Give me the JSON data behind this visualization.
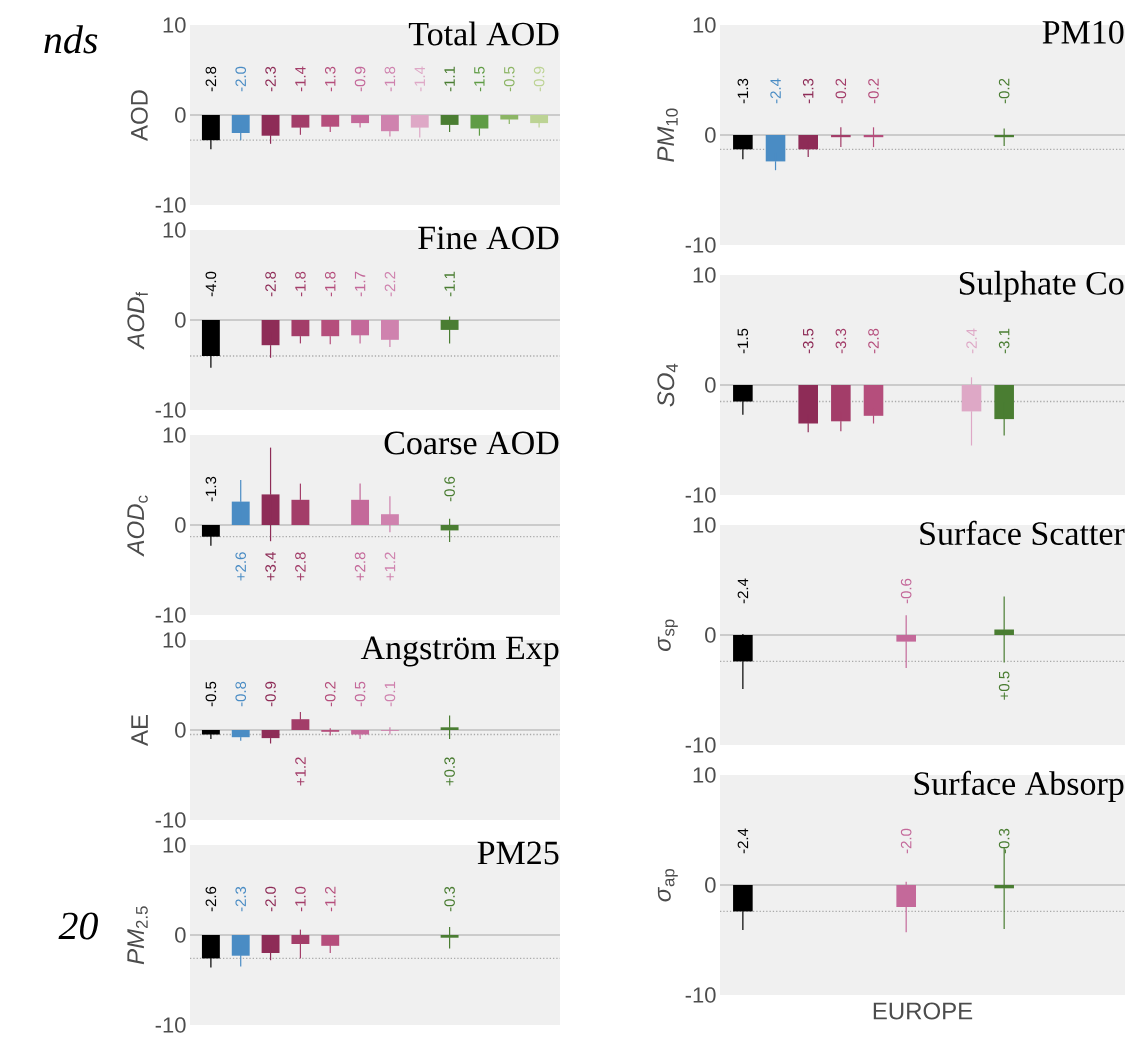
{
  "chart_data": [
    {
      "type": "bar",
      "title": "Total AOD",
      "ylabel": "AOD",
      "categories": [
        null,
        null,
        null,
        null,
        null,
        null,
        null,
        null,
        null,
        null,
        null,
        null
      ],
      "colors": [
        "#000000",
        "#4a8cc4",
        "#8e2c57",
        "#a33d69",
        "#b54e7c",
        "#c4699a",
        "#cf82ae",
        "#dea8c6",
        "#4a7d32",
        "#5f9c45",
        "#8cb565",
        "#bcd394"
      ],
      "values": [
        -2.8,
        -2.0,
        -2.3,
        -1.4,
        -1.3,
        -0.9,
        -1.8,
        -1.4,
        -1.1,
        -1.5,
        -0.5,
        -0.9
      ],
      "errors": [
        1.0,
        0.8,
        0.9,
        0.8,
        0.6,
        0.5,
        0.6,
        1.1,
        0.8,
        0.8,
        0.5,
        0.5
      ],
      "value_labels": [
        "-2.8",
        "-2.0",
        "-2.3",
        "-1.4",
        "-1.3",
        "-0.9",
        "-1.8",
        "-1.4",
        "-1.1",
        "-1.5",
        "-0.5",
        "-0.9"
      ],
      "ylim": [
        -10,
        10
      ],
      "yticks": [
        -10,
        0,
        10
      ],
      "tick_labels": "y",
      "ref_lines": [
        {
          "axis": "y",
          "value": -2.8,
          "color": "#aaaaaa",
          "line_style": "dotted"
        }
      ],
      "annotations": [
        "nds"
      ]
    },
    {
      "type": "bar",
      "title": "Fine AOD",
      "ylabel": "*AOD*$_{f}$",
      "categories": [
        null,
        null,
        null,
        null,
        null,
        null,
        null,
        null,
        null,
        null,
        null,
        null
      ],
      "colors": [
        "#000000",
        "#4a8cc4",
        "#8e2c57",
        "#a33d69",
        "#b54e7c",
        "#c4699a",
        "#cf82ae",
        "#dea8c6",
        "#4a7d32",
        "#5f9c45",
        "#8cb565",
        "#bcd394"
      ],
      "values": [
        -4.0,
        null,
        -2.8,
        -1.8,
        -1.8,
        -1.7,
        -2.2,
        null,
        -1.1,
        null,
        null,
        null
      ],
      "errors": [
        1.3,
        null,
        1.4,
        0.8,
        0.9,
        0.9,
        0.8,
        null,
        1.5,
        null,
        null,
        null
      ],
      "value_labels": [
        "-4.0",
        null,
        "-2.8",
        "-1.8",
        "-1.8",
        "-1.7",
        "-2.2",
        null,
        "-1.1",
        null,
        null,
        null
      ],
      "ylim": [
        -10,
        10
      ],
      "yticks": [
        -10,
        0,
        10
      ],
      "tick_labels": "y",
      "ref_lines": [
        {
          "axis": "y",
          "value": -4.0,
          "color": "#aaaaaa",
          "line_style": "dotted"
        }
      ]
    },
    {
      "type": "bar",
      "title": "Coarse AOD",
      "ylabel": "*AOD*$_{c}$",
      "categories": [
        null,
        null,
        null,
        null,
        null,
        null,
        null,
        null,
        null,
        null,
        null,
        null
      ],
      "colors": [
        "#000000",
        "#4a8cc4",
        "#8e2c57",
        "#a33d69",
        "#b54e7c",
        "#c4699a",
        "#cf82ae",
        "#dea8c6",
        "#4a7d32",
        "#5f9c45",
        "#8cb565",
        "#bcd394"
      ],
      "values": [
        -1.3,
        2.6,
        3.4,
        2.8,
        null,
        2.8,
        1.2,
        null,
        -0.6,
        null,
        null,
        null
      ],
      "errors": [
        1.0,
        2.4,
        5.2,
        1.8,
        null,
        1.8,
        2.0,
        null,
        1.3,
        null,
        null,
        null
      ],
      "value_labels": [
        "-1.3",
        "+2.6",
        "+3.4",
        "+2.8",
        null,
        "+2.8",
        "+1.2",
        null,
        "-0.6",
        null,
        null,
        null
      ],
      "ylim": [
        -10,
        10
      ],
      "yticks": [
        -10,
        0,
        10
      ],
      "tick_labels": "y",
      "ref_lines": [
        {
          "axis": "y",
          "value": -1.3,
          "color": "#aaaaaa",
          "line_style": "dotted"
        }
      ]
    },
    {
      "type": "bar",
      "title": "Angström Exp",
      "ylabel": "AE",
      "categories": [
        null,
        null,
        null,
        null,
        null,
        null,
        null,
        null,
        null,
        null,
        null,
        null
      ],
      "colors": [
        "#000000",
        "#4a8cc4",
        "#8e2c57",
        "#a33d69",
        "#b54e7c",
        "#c4699a",
        "#cf82ae",
        "#dea8c6",
        "#4a7d32",
        "#5f9c45",
        "#8cb565",
        "#bcd394"
      ],
      "values": [
        -0.5,
        -0.8,
        -0.9,
        1.2,
        -0.2,
        -0.5,
        -0.1,
        null,
        0.3,
        null,
        null,
        null
      ],
      "errors": [
        0.5,
        0.4,
        0.6,
        0.8,
        0.4,
        0.5,
        0.4,
        null,
        1.3,
        null,
        null,
        null
      ],
      "value_labels": [
        "-0.5",
        "-0.8",
        "-0.9",
        "+1.2",
        "-0.2",
        "-0.5",
        "-0.1",
        null,
        "+0.3",
        null,
        null,
        null
      ],
      "ylim": [
        -10,
        10
      ],
      "yticks": [
        -10,
        0,
        10
      ],
      "tick_labels": "y",
      "ref_lines": [
        {
          "axis": "y",
          "value": -0.5,
          "color": "#aaaaaa",
          "line_style": "dotted"
        }
      ]
    },
    {
      "type": "bar",
      "title": "PM25",
      "ylabel": "*PM*$_{2.5}$",
      "categories": [
        null,
        null,
        null,
        null,
        null,
        null,
        null,
        null,
        null,
        null,
        null,
        null
      ],
      "colors": [
        "#000000",
        "#4a8cc4",
        "#8e2c57",
        "#a33d69",
        "#b54e7c",
        "#c4699a",
        "#cf82ae",
        "#dea8c6",
        "#4a7d32",
        "#5f9c45",
        "#8cb565",
        "#bcd394"
      ],
      "values": [
        -2.6,
        -2.3,
        -2.0,
        -1.0,
        -1.2,
        null,
        null,
        null,
        -0.3,
        null,
        null,
        null
      ],
      "errors": [
        1.0,
        1.2,
        0.8,
        1.6,
        0.8,
        null,
        null,
        null,
        1.2,
        null,
        null,
        null
      ],
      "value_labels": [
        "-2.6",
        "-2.3",
        "-2.0",
        "-1.0",
        "-1.2",
        null,
        null,
        null,
        "-0.3",
        null,
        null,
        null
      ],
      "ylim": [
        -10,
        10
      ],
      "yticks": [
        -10,
        0,
        10
      ],
      "tick_labels": "y",
      "ref_lines": [
        {
          "axis": "y",
          "value": -2.6,
          "color": "#aaaaaa",
          "line_style": "dotted"
        }
      ],
      "annotations": [
        "20"
      ]
    },
    {
      "type": "bar",
      "title": "PM10",
      "ylabel": "*PM*$_{10}$",
      "categories": [
        null,
        null,
        null,
        null,
        null,
        null,
        null,
        null,
        null,
        null,
        null,
        null
      ],
      "colors": [
        "#000000",
        "#4a8cc4",
        "#8e2c57",
        "#a33d69",
        "#b54e7c",
        "#c4699a",
        "#cf82ae",
        "#dea8c6",
        "#4a7d32",
        "#5f9c45",
        "#8cb565",
        "#bcd394"
      ],
      "values": [
        -1.3,
        -2.4,
        -1.3,
        -0.2,
        -0.2,
        null,
        null,
        null,
        -0.2,
        null,
        null,
        null
      ],
      "errors": [
        0.9,
        0.8,
        0.7,
        0.9,
        0.9,
        null,
        null,
        null,
        0.8,
        null,
        null,
        null
      ],
      "value_labels": [
        "-1.3",
        "-2.4",
        "-1.3",
        "-0.2",
        "-0.2",
        null,
        null,
        null,
        "-0.2",
        null,
        null,
        null
      ],
      "ylim": [
        -10,
        10
      ],
      "yticks": [
        -10,
        0,
        10
      ],
      "tick_labels": "y",
      "ref_lines": [
        {
          "axis": "y",
          "value": -1.3,
          "color": "#aaaaaa",
          "line_style": "dotted"
        }
      ]
    },
    {
      "type": "bar",
      "title": "Sulphate Co",
      "ylabel": "*SO*$_{4}$",
      "categories": [
        null,
        null,
        null,
        null,
        null,
        null,
        null,
        null,
        null,
        null,
        null,
        null
      ],
      "colors": [
        "#000000",
        "#4a8cc4",
        "#8e2c57",
        "#a33d69",
        "#b54e7c",
        "#c4699a",
        "#cf82ae",
        "#dea8c6",
        "#4a7d32",
        "#5f9c45",
        "#8cb565",
        "#bcd394"
      ],
      "values": [
        -1.5,
        null,
        -3.5,
        -3.3,
        -2.8,
        null,
        null,
        -2.4,
        -3.1,
        null,
        null,
        null
      ],
      "errors": [
        1.2,
        null,
        0.8,
        0.9,
        0.7,
        null,
        null,
        3.1,
        1.5,
        null,
        null,
        null
      ],
      "value_labels": [
        "-1.5",
        null,
        "-3.5",
        "-3.3",
        "-2.8",
        null,
        null,
        "-2.4",
        "-3.1",
        null,
        null,
        null
      ],
      "ylim": [
        -10,
        10
      ],
      "yticks": [
        -10,
        0,
        10
      ],
      "tick_labels": "y",
      "ref_lines": [
        {
          "axis": "y",
          "value": -1.5,
          "color": "#aaaaaa",
          "line_style": "dotted"
        }
      ]
    },
    {
      "type": "bar",
      "title": "Surface Scatter",
      "ylabel": "*σ*$_{sp}$",
      "categories": [
        null,
        null,
        null,
        null,
        null,
        null,
        null,
        null,
        null,
        null,
        null,
        null
      ],
      "colors": [
        "#000000",
        "#4a8cc4",
        "#8e2c57",
        "#a33d69",
        "#b54e7c",
        "#c4699a",
        "#cf82ae",
        "#dea8c6",
        "#4a7d32",
        "#5f9c45",
        "#8cb565",
        "#bcd394"
      ],
      "values": [
        -2.4,
        null,
        null,
        null,
        null,
        -0.6,
        null,
        null,
        0.5,
        null,
        null,
        null
      ],
      "errors": [
        2.5,
        null,
        null,
        null,
        null,
        2.4,
        null,
        null,
        3.0,
        null,
        null,
        null
      ],
      "value_labels": [
        "-2.4",
        null,
        null,
        null,
        null,
        "-0.6",
        null,
        null,
        "+0.5",
        null,
        null,
        null
      ],
      "ylim": [
        -10,
        10
      ],
      "yticks": [
        -10,
        0,
        10
      ],
      "tick_labels": "y",
      "ref_lines": [
        {
          "axis": "y",
          "value": -2.4,
          "color": "#aaaaaa",
          "line_style": "dotted"
        }
      ]
    },
    {
      "type": "bar",
      "title": "Surface Absorp",
      "ylabel": "*σ*$_{ap}$",
      "xlabel": "EUROPE",
      "categories": [
        null,
        null,
        null,
        null,
        null,
        null,
        null,
        null,
        null,
        null,
        null,
        null
      ],
      "colors": [
        "#000000",
        "#4a8cc4",
        "#8e2c57",
        "#a33d69",
        "#b54e7c",
        "#c4699a",
        "#cf82ae",
        "#dea8c6",
        "#4a7d32",
        "#5f9c45",
        "#8cb565",
        "#bcd394"
      ],
      "values": [
        -2.4,
        null,
        null,
        null,
        null,
        -2.0,
        null,
        null,
        -0.3,
        null,
        null,
        null
      ],
      "errors": [
        1.7,
        null,
        null,
        null,
        null,
        2.3,
        null,
        null,
        3.7,
        null,
        null,
        null
      ],
      "value_labels": [
        "-2.4",
        null,
        null,
        null,
        null,
        "-2.0",
        null,
        null,
        "-0.3",
        null,
        null,
        null
      ],
      "ylim": [
        -10,
        10
      ],
      "yticks": [
        -10,
        0,
        10
      ],
      "tick_labels": "y",
      "ref_lines": [
        {
          "axis": "y",
          "value": -2.4,
          "color": "#aaaaaa",
          "line_style": "dotted"
        }
      ]
    }
  ]
}
